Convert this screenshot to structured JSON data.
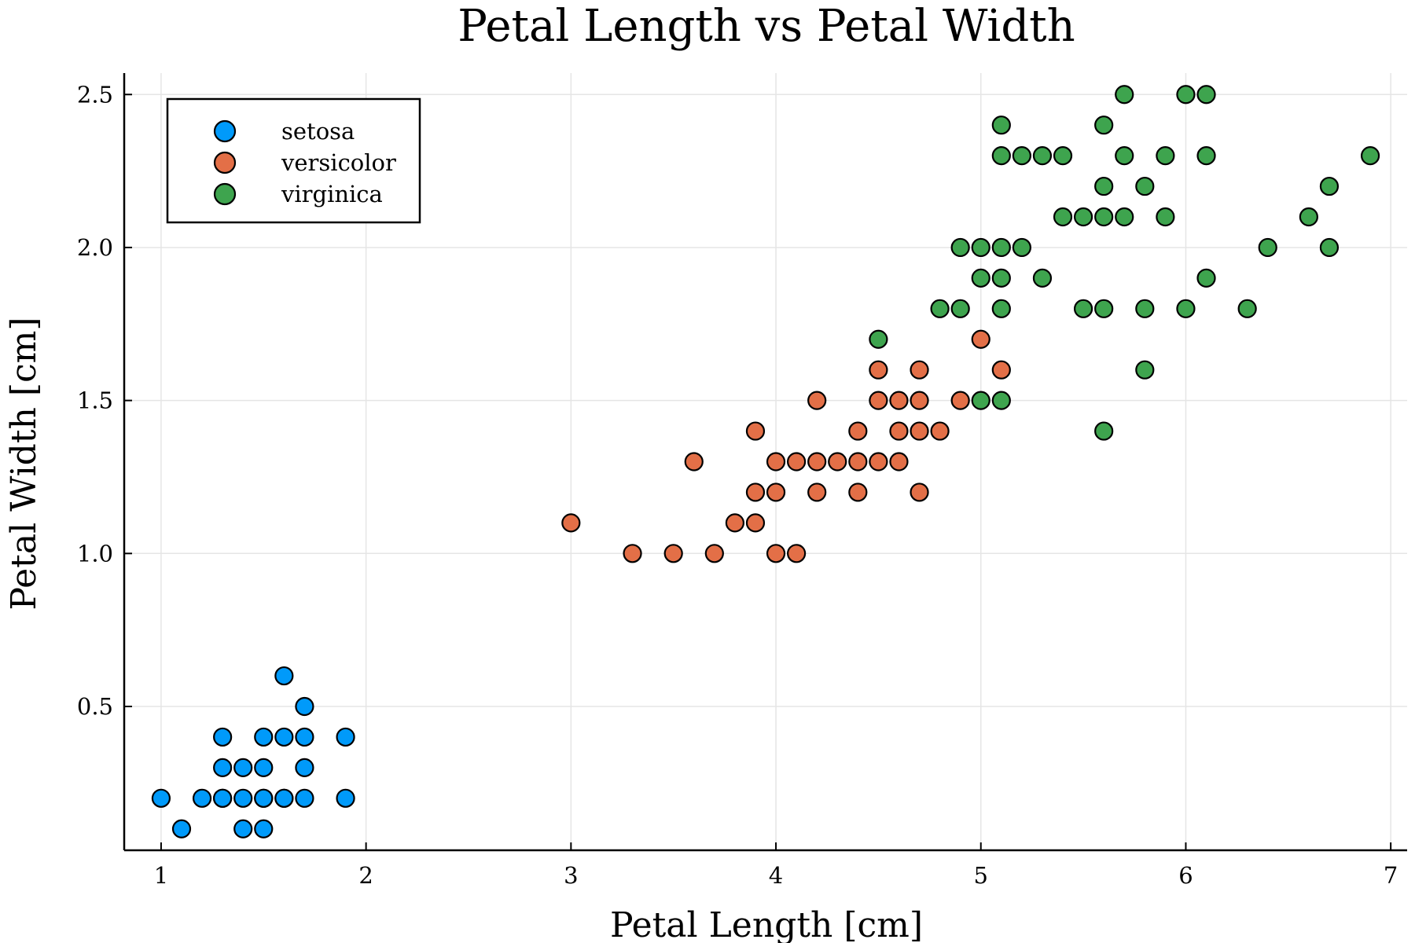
{
  "chart_data": {
    "type": "scatter",
    "title": "Petal Length vs Petal Width",
    "xlabel": "Petal Length [cm]",
    "ylabel": "Petal Width [cm]",
    "xlim": [
      0.82,
      7.08
    ],
    "ylim": [
      0.03,
      2.57
    ],
    "xticks": [
      1,
      2,
      3,
      4,
      5,
      6,
      7
    ],
    "xtick_labels": [
      "1",
      "2",
      "3",
      "4",
      "5",
      "6",
      "7"
    ],
    "yticks": [
      0.5,
      1.0,
      1.5,
      2.0,
      2.5
    ],
    "ytick_labels": [
      "0.5",
      "1.0",
      "1.5",
      "2.0",
      "2.5"
    ],
    "grid": true,
    "legend_position": "top-left",
    "series": [
      {
        "name": "setosa",
        "color": "#009AFA",
        "x": [
          1.0,
          1.1,
          1.2,
          1.3,
          1.3,
          1.3,
          1.3,
          1.4,
          1.4,
          1.4,
          1.5,
          1.5,
          1.5,
          1.5,
          1.5,
          1.6,
          1.6,
          1.6,
          1.6,
          1.7,
          1.7,
          1.7,
          1.7,
          1.9,
          1.9
        ],
        "y": [
          0.2,
          0.1,
          0.2,
          0.2,
          0.3,
          0.4,
          0.2,
          0.1,
          0.2,
          0.3,
          0.1,
          0.2,
          0.3,
          0.4,
          0.2,
          0.2,
          0.4,
          0.6,
          0.2,
          0.2,
          0.3,
          0.4,
          0.5,
          0.2,
          0.4
        ]
      },
      {
        "name": "versicolor",
        "color": "#E36F47",
        "x": [
          3.0,
          3.3,
          3.5,
          3.6,
          3.7,
          3.8,
          3.9,
          3.9,
          3.9,
          4.0,
          4.0,
          4.0,
          4.1,
          4.1,
          4.2,
          4.2,
          4.2,
          4.3,
          4.4,
          4.4,
          4.4,
          4.5,
          4.5,
          4.5,
          4.6,
          4.6,
          4.6,
          4.7,
          4.7,
          4.7,
          4.7,
          4.8,
          4.9,
          5.0,
          5.1
        ],
        "y": [
          1.1,
          1.0,
          1.0,
          1.3,
          1.0,
          1.1,
          1.1,
          1.2,
          1.4,
          1.0,
          1.2,
          1.3,
          1.0,
          1.3,
          1.2,
          1.3,
          1.5,
          1.3,
          1.2,
          1.3,
          1.4,
          1.3,
          1.5,
          1.6,
          1.3,
          1.4,
          1.5,
          1.2,
          1.4,
          1.5,
          1.6,
          1.4,
          1.5,
          1.7,
          1.6
        ]
      },
      {
        "name": "virginica",
        "color": "#3EA44E",
        "x": [
          4.5,
          4.8,
          4.9,
          4.9,
          5.0,
          5.0,
          5.0,
          5.1,
          5.1,
          5.1,
          5.1,
          5.1,
          5.1,
          5.2,
          5.2,
          5.3,
          5.3,
          5.4,
          5.4,
          5.5,
          5.5,
          5.6,
          5.6,
          5.6,
          5.6,
          5.6,
          5.7,
          5.7,
          5.7,
          5.8,
          5.8,
          5.8,
          5.9,
          5.9,
          6.0,
          6.0,
          6.1,
          6.1,
          6.1,
          6.3,
          6.4,
          6.6,
          6.7,
          6.7,
          6.9
        ],
        "y": [
          1.7,
          1.8,
          1.8,
          2.0,
          1.5,
          1.9,
          2.0,
          1.5,
          1.8,
          1.9,
          2.0,
          2.3,
          2.4,
          2.0,
          2.3,
          1.9,
          2.3,
          2.1,
          2.3,
          1.8,
          2.1,
          1.4,
          1.8,
          2.1,
          2.2,
          2.4,
          2.1,
          2.3,
          2.5,
          1.6,
          1.8,
          2.2,
          2.1,
          2.3,
          1.8,
          2.5,
          1.9,
          2.3,
          2.5,
          1.8,
          2.0,
          2.1,
          2.0,
          2.2,
          2.3
        ]
      }
    ]
  }
}
